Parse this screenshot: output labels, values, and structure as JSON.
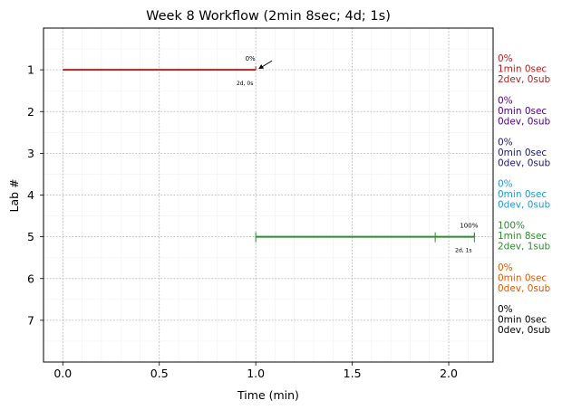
{
  "chart_data": {
    "type": "line",
    "title": "Week 8 Workflow (2min 8sec; 4d; 1s)",
    "xlabel": "Time (min)",
    "ylabel": "Lab #",
    "xlim": [
      -0.1,
      2.23
    ],
    "ylim": [
      8,
      0
    ],
    "x_ticks": [
      "0.0",
      "0.5",
      "1.0",
      "1.5",
      "2.0"
    ],
    "y_ticks": [
      "1",
      "2",
      "3",
      "4",
      "5",
      "6",
      "7"
    ],
    "grid": true,
    "series": [
      {
        "lab": 1,
        "color": "#b22222",
        "segments": [
          [
            0.0,
            1.0
          ]
        ],
        "progress_label": "0%",
        "counts_label": "2d, 0s",
        "summary": [
          "0%",
          "1min 0sec",
          "2dev, 0sub"
        ],
        "arrow": true
      },
      {
        "lab": 2,
        "color": "#4b0082",
        "segments": [],
        "summary": [
          "0%",
          "0min 0sec",
          "0dev, 0sub"
        ]
      },
      {
        "lab": 3,
        "color": "#191970",
        "segments": [],
        "summary": [
          "0%",
          "0min 0sec",
          "0dev, 0sub"
        ]
      },
      {
        "lab": 4,
        "color": "#1e9ad6",
        "segments": [],
        "summary": [
          "0%",
          "0min 0sec",
          "0dev, 0sub"
        ]
      },
      {
        "lab": 5,
        "color": "#2e8b2e",
        "segments": [
          [
            1.0,
            2.133
          ]
        ],
        "submission_marks": [
          1.0,
          1.93,
          2.133
        ],
        "progress_label": "100%",
        "counts_label": "2d, 1s",
        "summary": [
          "100%",
          "1min 8sec",
          "2dev, 1sub"
        ]
      },
      {
        "lab": 6,
        "color": "#e05a00",
        "segments": [],
        "summary": [
          "0%",
          "0min 0sec",
          "0dev, 0sub"
        ]
      },
      {
        "lab": 7,
        "color": "#000000",
        "segments": [],
        "summary": [
          "0%",
          "0min 0sec",
          "0dev, 0sub"
        ]
      }
    ]
  }
}
